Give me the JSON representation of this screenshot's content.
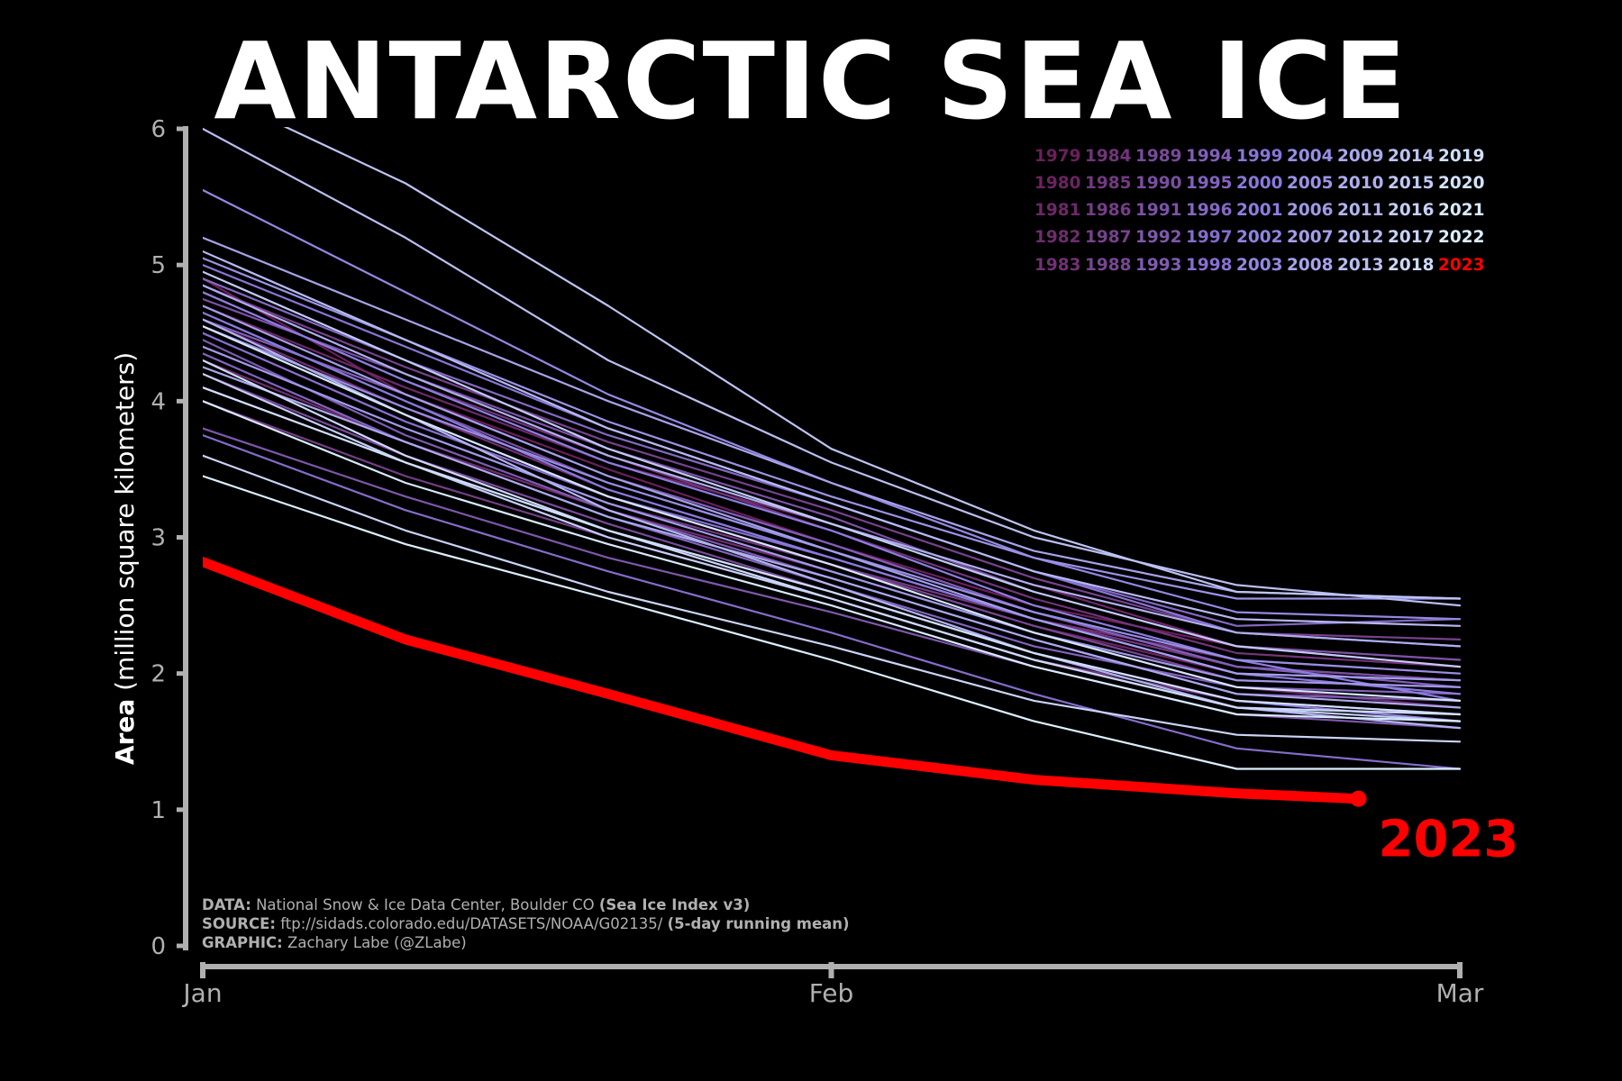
{
  "title": "ANTARCTIC SEA ICE",
  "ylabel_bold": "Area",
  "ylabel_rest": " (million square kilometers)",
  "credits": [
    {
      "label": "DATA:",
      "text": " National Snow & Ice Data Center, Boulder CO ",
      "bold": "(Sea Ice Index v3)"
    },
    {
      "label": "SOURCE:",
      "text": " ftp://sidads.colorado.edu/DATASETS/NOAA/G02135/ ",
      "bold": "(5-day running mean)"
    },
    {
      "label": "GRAPHIC:",
      "text": " Zachary Labe (@ZLabe)",
      "bold": ""
    }
  ],
  "colors": {
    "background": "#000000",
    "axis": "#b0b0b0",
    "highlight": "#ff0000",
    "palette_old": "#6b1f5c",
    "palette_mid": "#8a7be0",
    "palette_new": "#dcefff"
  },
  "chart_data": {
    "type": "line",
    "xlabel": "",
    "ylabel": "Area (million square kilometers)",
    "xlim": [
      "Jan 1",
      "Mar 1"
    ],
    "ylim": [
      0,
      6
    ],
    "x_ticks": [
      {
        "label": "Jan",
        "day": 0
      },
      {
        "label": "Feb",
        "day": 31
      },
      {
        "label": "Mar",
        "day": 62
      }
    ],
    "y_ticks": [
      0,
      1,
      2,
      3,
      4,
      5,
      6
    ],
    "legend_years": [
      1979,
      1980,
      1981,
      1982,
      1983,
      1984,
      1985,
      1986,
      1987,
      1988,
      1989,
      1990,
      1991,
      1992,
      1993,
      1994,
      1995,
      1996,
      1997,
      1998,
      1999,
      2000,
      2001,
      2002,
      2003,
      2004,
      2005,
      2006,
      2007,
      2008,
      2009,
      2010,
      2011,
      2012,
      2013,
      2014,
      2015,
      2016,
      2017,
      2018,
      2019,
      2020,
      2021,
      2022,
      2023
    ],
    "legend_position": "top-right",
    "highlight_label": "2023",
    "x_days": [
      0,
      10,
      20,
      31,
      41,
      51,
      62
    ],
    "series": [
      {
        "year": 1979,
        "values": [
          4.9,
          4.05,
          3.5,
          2.95,
          2.5,
          2.2,
          2.1
        ]
      },
      {
        "year": 1980,
        "values": [
          4.5,
          3.85,
          3.3,
          2.8,
          2.35,
          2.0,
          1.85
        ]
      },
      {
        "year": 1981,
        "values": [
          4.7,
          4.1,
          3.55,
          3.1,
          2.65,
          2.2,
          2.05
        ]
      },
      {
        "year": 1982,
        "values": [
          4.3,
          3.7,
          3.2,
          2.75,
          2.3,
          1.9,
          1.75
        ]
      },
      {
        "year": 1983,
        "values": [
          4.6,
          3.95,
          3.35,
          2.85,
          2.4,
          2.1,
          2.0
        ]
      },
      {
        "year": 1984,
        "values": [
          4.8,
          4.15,
          3.6,
          3.05,
          2.55,
          2.15,
          2.05
        ]
      },
      {
        "year": 1985,
        "values": [
          4.4,
          3.8,
          3.25,
          2.8,
          2.4,
          2.05,
          1.95
        ]
      },
      {
        "year": 1986,
        "values": [
          4.0,
          3.45,
          3.0,
          2.55,
          2.1,
          1.8,
          1.7
        ]
      },
      {
        "year": 1987,
        "values": [
          4.85,
          4.25,
          3.7,
          3.2,
          2.7,
          2.3,
          2.25
        ]
      },
      {
        "year": 1988,
        "values": [
          4.55,
          3.9,
          3.3,
          2.8,
          2.35,
          1.95,
          1.9
        ]
      },
      {
        "year": 1989,
        "values": [
          4.2,
          3.6,
          3.1,
          2.6,
          2.15,
          1.8,
          1.7
        ]
      },
      {
        "year": 1990,
        "values": [
          4.65,
          4.0,
          3.4,
          2.9,
          2.45,
          2.05,
          1.95
        ]
      },
      {
        "year": 1991,
        "values": [
          4.75,
          4.2,
          3.65,
          3.15,
          2.6,
          2.2,
          2.1
        ]
      },
      {
        "year": 1992,
        "values": [
          3.8,
          3.3,
          2.85,
          2.45,
          2.05,
          1.7,
          1.6
        ]
      },
      {
        "year": 1993,
        "values": [
          4.45,
          3.75,
          3.2,
          2.7,
          2.25,
          1.85,
          1.8
        ]
      },
      {
        "year": 1994,
        "values": [
          4.6,
          4.05,
          3.45,
          2.95,
          2.45,
          2.05,
          1.9
        ]
      },
      {
        "year": 1995,
        "values": [
          4.35,
          3.7,
          3.15,
          2.65,
          2.2,
          1.9,
          1.85
        ]
      },
      {
        "year": 1996,
        "values": [
          4.9,
          4.3,
          3.75,
          3.25,
          2.75,
          2.35,
          2.4
        ]
      },
      {
        "year": 1997,
        "values": [
          3.75,
          3.2,
          2.75,
          2.3,
          1.85,
          1.45,
          1.3
        ]
      },
      {
        "year": 1998,
        "values": [
          4.5,
          3.85,
          3.3,
          2.85,
          2.4,
          2.0,
          1.95
        ]
      },
      {
        "year": 1999,
        "values": [
          5.0,
          4.4,
          3.8,
          3.25,
          2.75,
          2.3,
          2.2
        ]
      },
      {
        "year": 2000,
        "values": [
          4.65,
          4.0,
          3.35,
          2.85,
          2.4,
          2.0,
          1.85
        ]
      },
      {
        "year": 2001,
        "values": [
          4.8,
          4.15,
          3.55,
          3.05,
          2.5,
          2.1,
          1.8
        ]
      },
      {
        "year": 2002,
        "values": [
          4.1,
          3.55,
          3.05,
          2.6,
          2.15,
          1.8,
          1.65
        ]
      },
      {
        "year": 2003,
        "values": [
          5.55,
          4.8,
          4.05,
          3.4,
          2.85,
          2.45,
          2.4
        ]
      },
      {
        "year": 2004,
        "values": [
          4.55,
          3.95,
          3.4,
          2.9,
          2.45,
          2.1,
          2.0
        ]
      },
      {
        "year": 2005,
        "values": [
          5.05,
          4.45,
          3.85,
          3.3,
          2.85,
          2.55,
          2.55
        ]
      },
      {
        "year": 2006,
        "values": [
          4.4,
          3.8,
          3.25,
          2.75,
          2.3,
          1.95,
          1.9
        ]
      },
      {
        "year": 2007,
        "values": [
          4.7,
          4.05,
          3.45,
          2.9,
          2.4,
          2.0,
          1.95
        ]
      },
      {
        "year": 2008,
        "values": [
          5.2,
          4.6,
          4.0,
          3.4,
          2.9,
          2.6,
          2.55
        ]
      },
      {
        "year": 2009,
        "values": [
          4.25,
          3.7,
          3.15,
          2.7,
          2.25,
          1.85,
          1.75
        ]
      },
      {
        "year": 2010,
        "values": [
          4.85,
          4.2,
          3.6,
          3.1,
          2.65,
          2.3,
          2.2
        ]
      },
      {
        "year": 2011,
        "values": [
          4.6,
          3.9,
          3.2,
          2.65,
          2.15,
          1.75,
          1.6
        ]
      },
      {
        "year": 2012,
        "values": [
          5.1,
          4.45,
          3.8,
          3.25,
          2.75,
          2.4,
          2.35
        ]
      },
      {
        "year": 2013,
        "values": [
          6.0,
          5.2,
          4.3,
          3.55,
          3.0,
          2.65,
          2.5
        ]
      },
      {
        "year": 2014,
        "values": [
          6.3,
          5.6,
          4.7,
          3.65,
          3.05,
          2.6,
          2.55
        ]
      },
      {
        "year": 2015,
        "values": [
          4.95,
          4.3,
          3.65,
          3.1,
          2.6,
          2.2,
          2.05
        ]
      },
      {
        "year": 2016,
        "values": [
          4.2,
          3.55,
          3.0,
          2.55,
          2.1,
          1.75,
          1.65
        ]
      },
      {
        "year": 2017,
        "values": [
          3.6,
          3.05,
          2.6,
          2.2,
          1.8,
          1.55,
          1.5
        ]
      },
      {
        "year": 2018,
        "values": [
          4.3,
          3.6,
          3.05,
          2.55,
          2.1,
          1.75,
          1.7
        ]
      },
      {
        "year": 2019,
        "values": [
          4.1,
          3.55,
          3.05,
          2.6,
          2.15,
          1.8,
          1.7
        ]
      },
      {
        "year": 2020,
        "values": [
          4.55,
          3.9,
          3.3,
          2.8,
          2.3,
          1.9,
          1.8
        ]
      },
      {
        "year": 2021,
        "values": [
          4.0,
          3.4,
          2.95,
          2.5,
          2.05,
          1.7,
          1.65
        ]
      },
      {
        "year": 2022,
        "values": [
          3.45,
          2.95,
          2.55,
          2.1,
          1.65,
          1.3,
          1.3
        ]
      },
      {
        "year": 2023,
        "x_days": [
          0,
          10,
          20,
          31,
          41,
          51,
          57
        ],
        "values": [
          2.82,
          2.25,
          1.85,
          1.4,
          1.22,
          1.12,
          1.08
        ]
      }
    ]
  }
}
